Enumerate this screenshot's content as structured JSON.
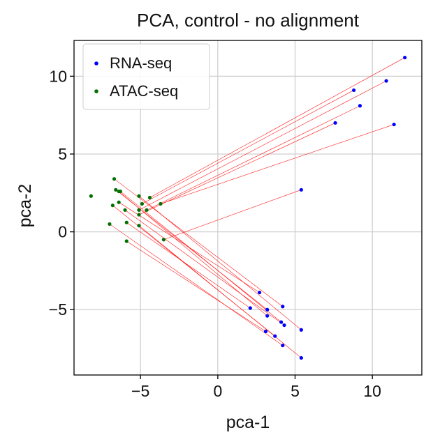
{
  "chart_data": {
    "type": "scatter",
    "title": "PCA, control - no alignment",
    "xlabel": "pca-1",
    "ylabel": "pca-2",
    "xlim": [
      -9.3,
      13.2
    ],
    "ylim": [
      -9.2,
      12.3
    ],
    "xticks": [
      -5,
      0,
      5,
      10
    ],
    "xtick_labels": [
      "−5",
      "0",
      "5",
      "10"
    ],
    "yticks": [
      -5,
      0,
      5,
      10
    ],
    "ytick_labels": [
      "−5",
      "0",
      "5",
      "10"
    ],
    "grid": true,
    "legend": {
      "placement": "top-left",
      "entries": [
        {
          "name": "RNA-seq",
          "color": "#0000ff"
        },
        {
          "name": "ATAC-seq",
          "color": "#007000"
        }
      ]
    },
    "series": [
      {
        "name": "RNA-seq",
        "color": "#0000ff",
        "points": [
          [
            12.1,
            11.2
          ],
          [
            8.8,
            9.1
          ],
          [
            10.9,
            9.7
          ],
          [
            9.2,
            8.1
          ],
          [
            7.6,
            7.0
          ],
          [
            11.4,
            6.9
          ],
          [
            5.4,
            2.7
          ],
          [
            2.7,
            -3.9
          ],
          [
            4.2,
            -4.8
          ],
          [
            2.1,
            -4.9
          ],
          [
            3.2,
            -5.0
          ],
          [
            3.2,
            -5.4
          ],
          [
            4.1,
            -5.8
          ],
          [
            4.3,
            -6.0
          ],
          [
            5.4,
            -6.3
          ],
          [
            3.1,
            -6.4
          ],
          [
            3.7,
            -6.7
          ],
          [
            4.2,
            -7.3
          ],
          [
            5.4,
            -8.1
          ]
        ]
      },
      {
        "name": "ATAC-seq",
        "color": "#007000",
        "points": [
          [
            -6.7,
            3.4
          ],
          [
            -6.6,
            2.7
          ],
          [
            -6.4,
            2.6
          ],
          [
            -6.3,
            2.6
          ],
          [
            -8.2,
            2.3
          ],
          [
            -5.1,
            2.3
          ],
          [
            -4.4,
            2.2
          ],
          [
            -6.4,
            1.9
          ],
          [
            -4.9,
            1.8
          ],
          [
            -3.7,
            1.8
          ],
          [
            -6.8,
            1.7
          ],
          [
            -6.0,
            1.4
          ],
          [
            -5.1,
            1.4
          ],
          [
            -4.6,
            1.4
          ],
          [
            -5.1,
            1.1
          ],
          [
            -5.9,
            0.6
          ],
          [
            -7.0,
            0.5
          ],
          [
            -5.1,
            0.4
          ],
          [
            -3.5,
            -0.5
          ],
          [
            -5.9,
            -0.6
          ]
        ]
      }
    ],
    "links": {
      "color": "#ff0000",
      "segments": [
        [
          [
            12.1,
            11.2
          ],
          [
            -4.4,
            2.2
          ]
        ],
        [
          [
            8.8,
            9.1
          ],
          [
            -4.9,
            1.8
          ]
        ],
        [
          [
            10.9,
            9.7
          ],
          [
            -5.1,
            1.4
          ]
        ],
        [
          [
            9.2,
            8.1
          ],
          [
            -4.6,
            1.4
          ]
        ],
        [
          [
            7.6,
            7.0
          ],
          [
            -5.1,
            1.1
          ]
        ],
        [
          [
            11.4,
            6.9
          ],
          [
            -3.7,
            1.8
          ]
        ],
        [
          [
            5.4,
            2.7
          ],
          [
            -3.5,
            -0.5
          ]
        ],
        [
          [
            2.7,
            -3.9
          ],
          [
            -6.4,
            1.9
          ]
        ],
        [
          [
            4.2,
            -4.8
          ],
          [
            -6.7,
            3.4
          ]
        ],
        [
          [
            2.1,
            -4.9
          ],
          [
            -5.9,
            0.6
          ]
        ],
        [
          [
            3.2,
            -5.0
          ],
          [
            -6.6,
            2.7
          ]
        ],
        [
          [
            3.2,
            -5.4
          ],
          [
            -6.4,
            2.6
          ]
        ],
        [
          [
            4.1,
            -5.8
          ],
          [
            -6.3,
            2.6
          ]
        ],
        [
          [
            4.3,
            -6.0
          ],
          [
            -6.0,
            1.4
          ]
        ],
        [
          [
            5.4,
            -6.3
          ],
          [
            -5.1,
            2.3
          ]
        ],
        [
          [
            3.1,
            -6.4
          ],
          [
            -5.9,
            -0.6
          ]
        ],
        [
          [
            3.7,
            -6.7
          ],
          [
            -6.8,
            1.7
          ]
        ],
        [
          [
            4.2,
            -7.3
          ],
          [
            -7.0,
            0.5
          ]
        ],
        [
          [
            5.4,
            -8.1
          ],
          [
            -5.1,
            0.4
          ]
        ]
      ]
    }
  }
}
